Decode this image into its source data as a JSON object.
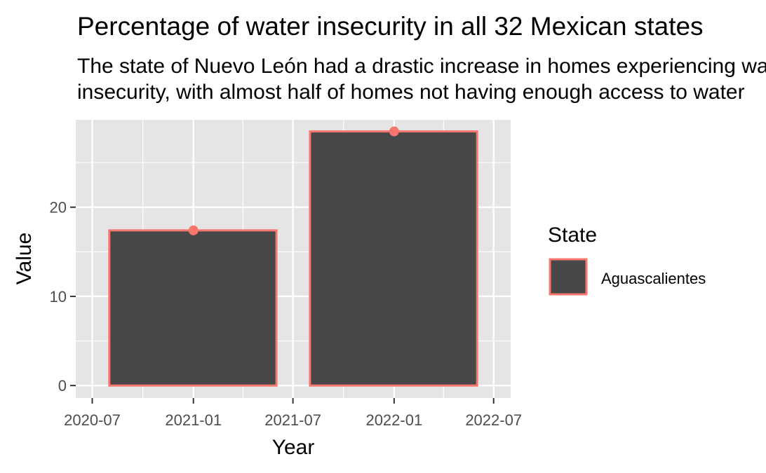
{
  "chart_data": {
    "type": "bar",
    "title": "Percentage of water insecurity in all 32 Mexican states",
    "subtitle_lines": [
      "The state of Nuevo León had a drastic increase in homes experiencing water",
      "insecurity, with almost half of homes not having enough access to water"
    ],
    "xlabel": "Year",
    "ylabel": "Value",
    "x_ticks": [
      "2020-07",
      "2021-01",
      "2021-07",
      "2022-01",
      "2022-07"
    ],
    "y_ticks": [
      0,
      10,
      20
    ],
    "xlim": [
      "2020-06-01",
      "2022-08-01"
    ],
    "ylim": [
      -1.4,
      29.8
    ],
    "grid": true,
    "legend": {
      "title": "State",
      "placement": "right"
    },
    "series": [
      {
        "name": "Aguascalientes",
        "bar_fill": "#474747",
        "bar_border": "#F8766D",
        "point_color": "#F8766D",
        "bars": [
          {
            "x": "2021-01-01",
            "x_start": "2020-08-01",
            "x_end": "2021-06-01",
            "value": 17.4
          },
          {
            "x": "2022-01-01",
            "x_start": "2021-08-01",
            "x_end": "2022-06-01",
            "value": 28.5
          }
        ]
      }
    ]
  },
  "colors": {
    "panel_bg": "#E5E5E5",
    "grid_major": "#FFFFFF",
    "tick_text": "#4D4D4D"
  }
}
